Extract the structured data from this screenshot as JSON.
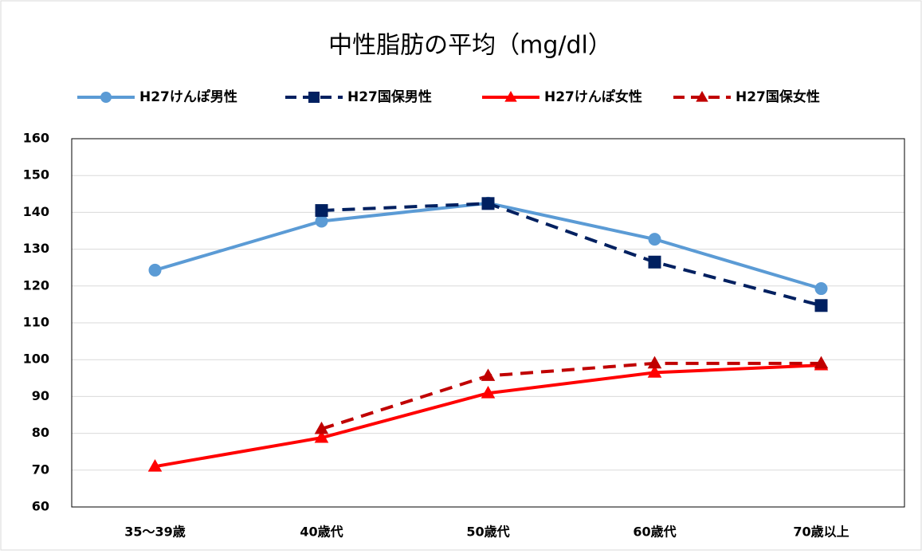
{
  "chart_data": {
    "type": "line",
    "title": "中性脂肪の平均（mg/dl）",
    "categories": [
      "35〜39歳",
      "40歳代",
      "50歳代",
      "60歳代",
      "70歳以上"
    ],
    "series": [
      {
        "name": "H27けんぽ男性",
        "color": "#5b9bd5",
        "marker": "circle",
        "linestyle": "solid",
        "values": [
          124.3,
          137.6,
          142.5,
          132.7,
          119.3
        ]
      },
      {
        "name": "H27国保男性",
        "color": "#002060",
        "marker": "square",
        "linestyle": "dashed",
        "values": [
          null,
          140.5,
          142.4,
          126.5,
          114.7
        ]
      },
      {
        "name": "H27けんぽ女性",
        "color": "#ff0000",
        "marker": "triangle",
        "linestyle": "solid",
        "values": [
          71.0,
          78.8,
          90.9,
          96.5,
          98.5
        ]
      },
      {
        "name": "H27国保女性",
        "color": "#c00000",
        "marker": "triangle",
        "linestyle": "dashed",
        "values": [
          null,
          81.2,
          95.6,
          99.0,
          99.0
        ]
      }
    ],
    "ylim": [
      60,
      160
    ],
    "yticks": [
      60,
      70,
      80,
      90,
      100,
      110,
      120,
      130,
      140,
      150,
      160
    ],
    "grid": true,
    "legend": "top"
  }
}
